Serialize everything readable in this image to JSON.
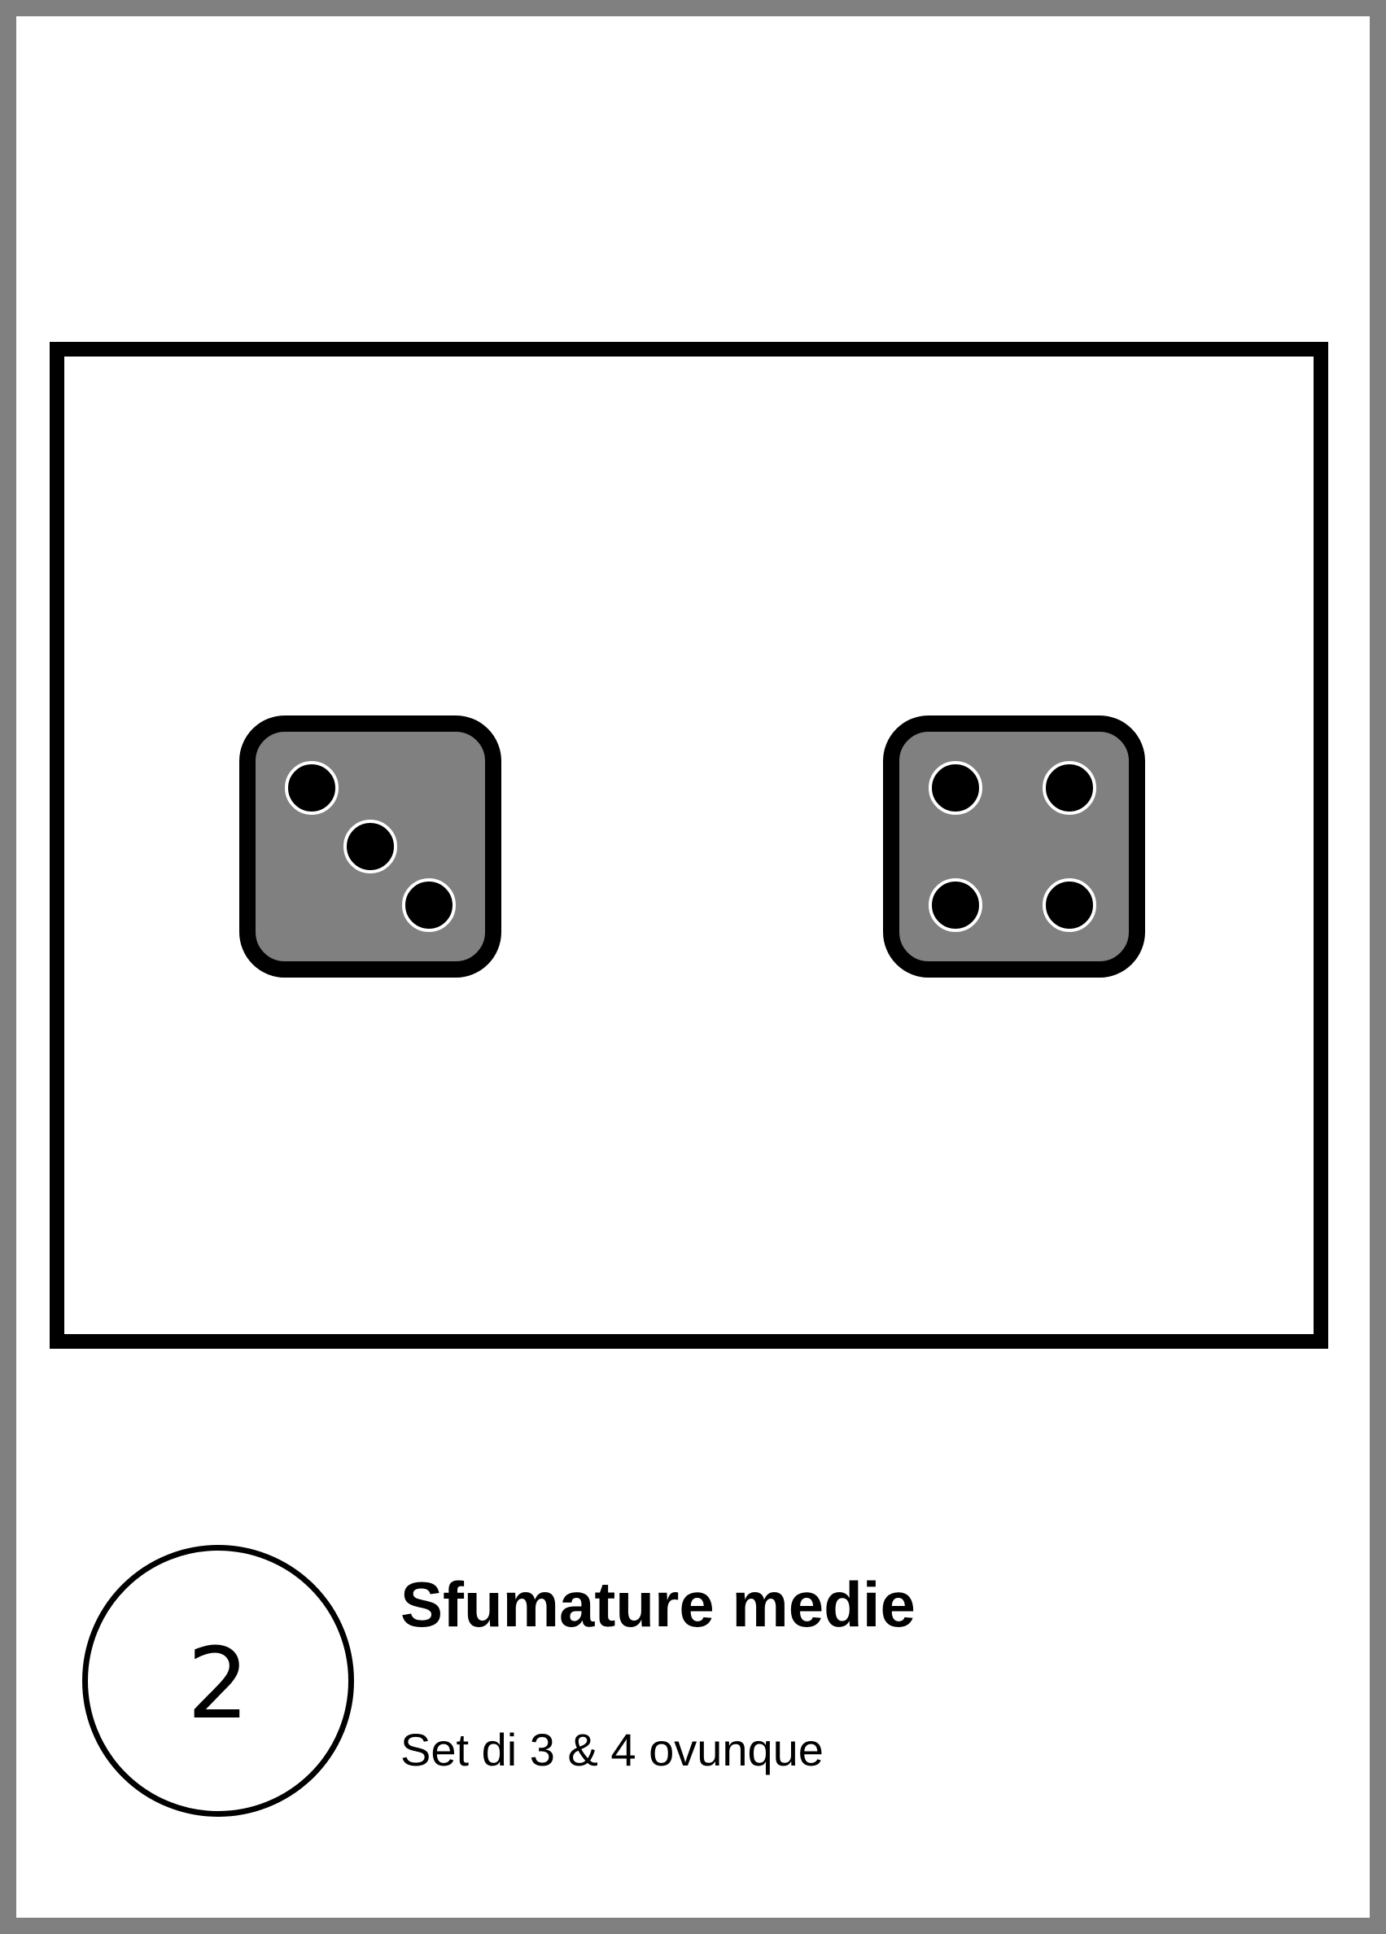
{
  "card": {
    "score": "2",
    "title": "Sfumature medie",
    "rule": "Set di 3 & 4 ovunque"
  },
  "dice": [
    {
      "value": 3,
      "face_color": "#808080"
    },
    {
      "value": 4,
      "face_color": "#808080"
    }
  ],
  "colors": {
    "background": "#808080",
    "card": "#ffffff",
    "outline": "#000000",
    "pip": "#000000",
    "pip_ring": "#ffffff"
  }
}
